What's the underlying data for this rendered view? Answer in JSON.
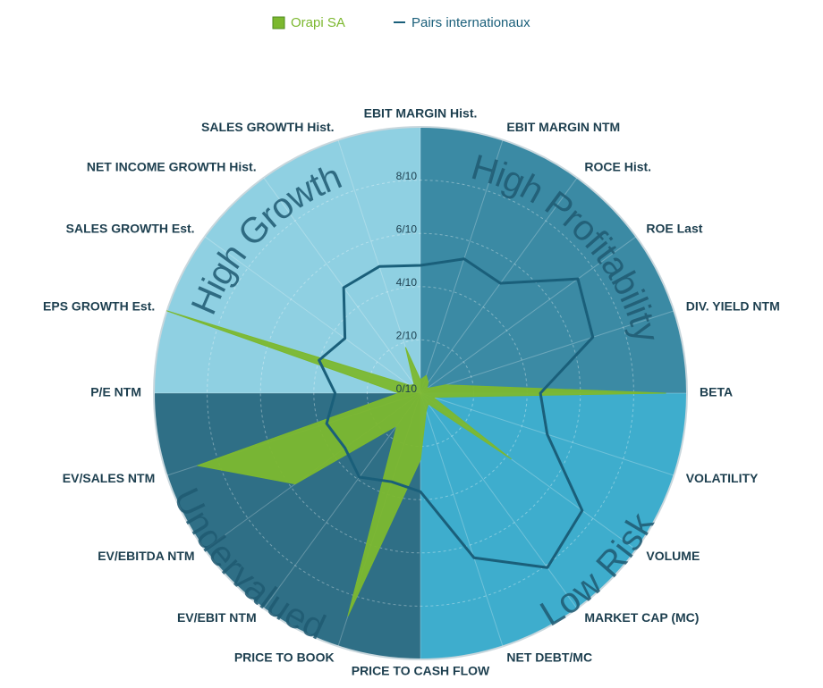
{
  "chart_data": {
    "type": "radar",
    "legend": [
      "Orapi SA",
      "Pairs internationaux"
    ],
    "axes": [
      "EBIT MARGIN Hist.",
      "EBIT MARGIN NTM",
      "ROCE Hist.",
      "ROE Last",
      "DIV. YIELD NTM",
      "BETA",
      "VOLATILITY",
      "VOLUME",
      "MARKET CAP (MC)",
      "NET DEBT/MC",
      "PRICE TO CASH FLOW",
      "PRICE TO BOOK",
      "EV/EBIT NTM",
      "EV/EBITDA NTM",
      "EV/SALES NTM",
      "P/E NTM",
      "EPS GROWTH Est.",
      "SALES GROWTH Est.",
      "NET INCOME GROWTH Hist.",
      "SALES GROWTH Hist."
    ],
    "rlim": [
      0,
      10
    ],
    "rticks": [
      {
        "value": 0,
        "label": "0/10"
      },
      {
        "value": 2,
        "label": "2/10"
      },
      {
        "value": 4,
        "label": "4/10"
      },
      {
        "value": 6,
        "label": "6/10"
      },
      {
        "value": 8,
        "label": "8/10"
      }
    ],
    "quadrants": [
      {
        "label": "High Profitability",
        "color": "#3b8aa4"
      },
      {
        "label": "Low Risk",
        "color": "#3eadcd"
      },
      {
        "label": "Undervalued",
        "color": "#2f6f86"
      },
      {
        "label": "High Growth",
        "color": "#8fd0e2"
      }
    ],
    "series": [
      {
        "name": "Orapi SA",
        "color": "#7cb82f",
        "fill": true,
        "values": [
          0.5,
          0.7,
          0.5,
          0.3,
          1,
          9.2,
          0.5,
          4.2,
          0.5,
          0.7,
          2.5,
          8.8,
          1.5,
          5.8,
          8.8,
          0.8,
          10,
          0.5,
          0.4,
          1.8
        ]
      },
      {
        "name": "Pairs internationaux",
        "color": "#1a5f7a",
        "fill": false,
        "values": [
          4.8,
          5.3,
          5.1,
          7.3,
          6.8,
          4.5,
          5,
          7.5,
          8.1,
          6.5,
          3.7,
          3.5,
          3.9,
          3.5,
          3.7,
          3.2,
          4,
          3.5,
          4.9,
          5
        ]
      }
    ]
  }
}
